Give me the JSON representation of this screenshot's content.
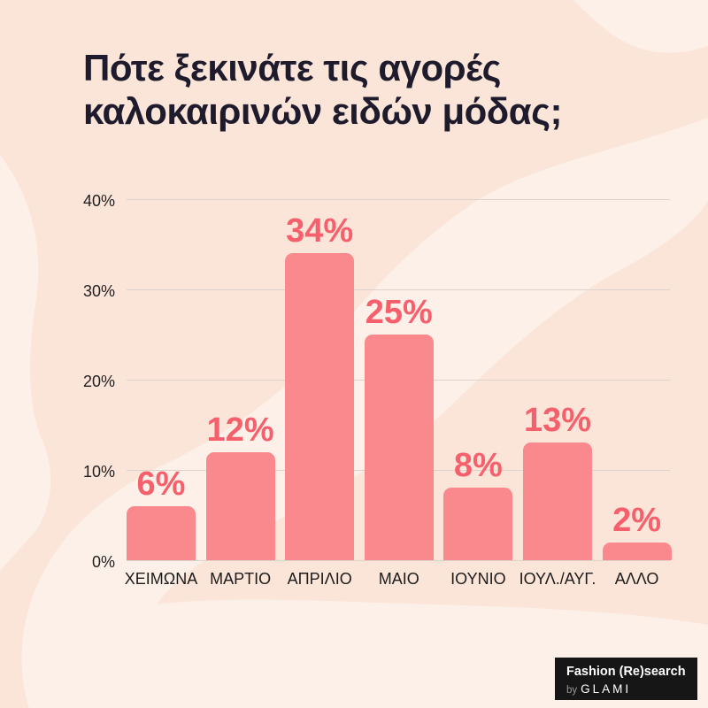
{
  "title": {
    "line1": "Πότε ξεκινάτε τις αγορές",
    "line2": "καλοκαιρινών ειδών μόδας;"
  },
  "chart_data": {
    "type": "bar",
    "title": "Πότε ξεκινάτε τις αγορές καλοκαιρινών ειδών μόδας;",
    "categories": [
      "ΧΕΙΜΩΝΑ",
      "ΜΑΡΤΙΟ",
      "ΑΠΡΙΛΙΟ",
      "ΜΑΙΟ",
      "ΙΟΥΝΙΟ",
      "ΙΟΥΛ./ΑΥΓ.",
      "ΑΛΛΟ"
    ],
    "values": [
      6,
      12,
      34,
      25,
      8,
      13,
      2
    ],
    "data_labels": [
      "6%",
      "12%",
      "34%",
      "25%",
      "8%",
      "13%",
      "2%"
    ],
    "xlabel": "",
    "ylabel": "",
    "y_ticks": [
      "0%",
      "10%",
      "20%",
      "30%",
      "40%"
    ],
    "y_tick_values": [
      0,
      10,
      20,
      30,
      40
    ],
    "ylim": [
      0,
      40
    ],
    "grid": true,
    "legend": false
  },
  "badge": {
    "line1": "Fashion (Re)search",
    "by": "by",
    "brand": "GLAMI"
  },
  "colors": {
    "background": "#fbe4d8",
    "background_blob": "#fdf0e8",
    "bar": "#f9898c",
    "value_label": "#f5606c",
    "gridline": "#dbd3cc",
    "axis_text": "#1c1c1c",
    "title_text": "#1e1b2c",
    "badge_bg": "#161616"
  }
}
